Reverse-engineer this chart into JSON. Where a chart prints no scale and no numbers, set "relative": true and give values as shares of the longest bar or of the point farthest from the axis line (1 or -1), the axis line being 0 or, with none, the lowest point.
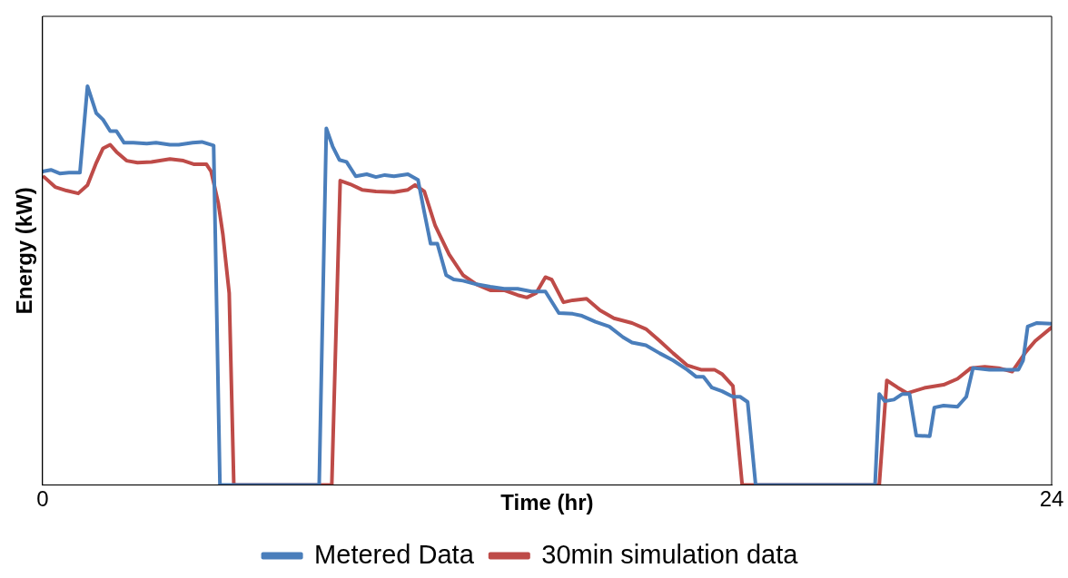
{
  "chart_data": {
    "type": "line",
    "relative": true,
    "xlabel": "Time (hr)",
    "ylabel": "Energy (kW)",
    "xlim": [
      0,
      24
    ],
    "xticks": [
      0,
      24
    ],
    "grid": false,
    "legend": "bottom",
    "marker": "none",
    "line_style": "solid",
    "series": [
      {
        "name": "Metered Data",
        "color": "#4a7ebb",
        "x": [
          0,
          0.2,
          0.41,
          0.63,
          0.89,
          1.07,
          1.28,
          1.44,
          1.61,
          1.76,
          1.94,
          2.16,
          2.48,
          2.7,
          3.03,
          3.24,
          3.57,
          3.79,
          4.07,
          4.22,
          4.49,
          6.58,
          6.75,
          6.9,
          7.06,
          7.23,
          7.45,
          7.71,
          7.93,
          8.14,
          8.36,
          8.69,
          8.93,
          9.08,
          9.23,
          9.39,
          9.6,
          9.78,
          10,
          10.32,
          10.65,
          10.98,
          11.3,
          11.63,
          11.96,
          12.28,
          12.61,
          12.83,
          13.15,
          13.48,
          13.81,
          14.02,
          14.35,
          14.68,
          15,
          15.33,
          15.55,
          15.72,
          15.92,
          16.16,
          16.42,
          16.59,
          16.77,
          16.96,
          19.8,
          19.9,
          20.03,
          20.25,
          20.45,
          20.62,
          20.78,
          21.1,
          21.21,
          21.43,
          21.76,
          21.97,
          22.13,
          22.52,
          22.95,
          23.21,
          23.32,
          23.43,
          23.65,
          24
        ],
        "values": [
          0.786,
          0.79,
          0.781,
          0.783,
          0.783,
          1,
          0.932,
          0.916,
          0.887,
          0.887,
          0.858,
          0.858,
          0.856,
          0.858,
          0.853,
          0.853,
          0.858,
          0.86,
          0.851,
          0,
          0,
          0,
          0.894,
          0.849,
          0.815,
          0.81,
          0.774,
          0.779,
          0.772,
          0.777,
          0.774,
          0.779,
          0.765,
          0.684,
          0.605,
          0.605,
          0.526,
          0.515,
          0.512,
          0.503,
          0.497,
          0.492,
          0.492,
          0.485,
          0.485,
          0.431,
          0.429,
          0.424,
          0.409,
          0.397,
          0.37,
          0.357,
          0.35,
          0.33,
          0.312,
          0.289,
          0.271,
          0.271,
          0.244,
          0.235,
          0.221,
          0.221,
          0.208,
          0,
          0,
          0.228,
          0.21,
          0.214,
          0.228,
          0.228,
          0.124,
          0.122,
          0.194,
          0.199,
          0.196,
          0.221,
          0.293,
          0.289,
          0.289,
          0.289,
          0.312,
          0.397,
          0.406,
          0.404
        ]
      },
      {
        "name": "30min simulation data",
        "color": "#be4b48",
        "x": [
          0.04,
          0.3,
          0.57,
          0.85,
          1.07,
          1.28,
          1.44,
          1.61,
          1.76,
          2,
          2.26,
          2.59,
          3.03,
          3.35,
          3.61,
          3.9,
          4.01,
          4.18,
          4.29,
          4.44,
          4.55,
          6.88,
          7.08,
          7.32,
          7.6,
          7.93,
          8.36,
          8.69,
          8.86,
          9.08,
          9.34,
          9.67,
          10,
          10.32,
          10.65,
          10.98,
          11.3,
          11.52,
          11.74,
          11.96,
          12.11,
          12.39,
          12.61,
          12.94,
          13.26,
          13.59,
          14.02,
          14.35,
          14.68,
          15,
          15.33,
          15.66,
          15.98,
          16.16,
          16.42,
          16.64,
          19.9,
          20.08,
          20.34,
          20.56,
          21,
          21.43,
          21.76,
          22.08,
          22.41,
          22.74,
          23.06,
          23.39,
          23.61,
          24
        ],
        "values": [
          0.772,
          0.747,
          0.738,
          0.731,
          0.752,
          0.808,
          0.844,
          0.853,
          0.835,
          0.813,
          0.808,
          0.81,
          0.817,
          0.813,
          0.804,
          0.804,
          0.786,
          0.707,
          0.628,
          0.481,
          0,
          0,
          0.763,
          0.754,
          0.74,
          0.736,
          0.734,
          0.74,
          0.752,
          0.736,
          0.65,
          0.578,
          0.526,
          0.503,
          0.488,
          0.488,
          0.476,
          0.47,
          0.481,
          0.521,
          0.515,
          0.458,
          0.463,
          0.467,
          0.438,
          0.418,
          0.406,
          0.391,
          0.361,
          0.33,
          0.3,
          0.289,
          0.289,
          0.278,
          0.248,
          0,
          0,
          0.262,
          0.244,
          0.23,
          0.244,
          0.251,
          0.266,
          0.293,
          0.296,
          0.293,
          0.284,
          0.334,
          0.361,
          0.395
        ]
      }
    ]
  }
}
